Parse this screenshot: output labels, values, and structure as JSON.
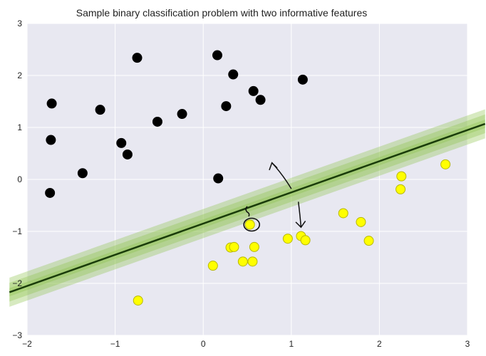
{
  "chart_data": {
    "type": "scatter",
    "title": "Sample binary classification problem with two informative features",
    "xlabel": "",
    "ylabel": "",
    "xlim": [
      -2,
      3
    ],
    "ylim": [
      -3,
      3
    ],
    "x_ticks": [
      -2,
      -1,
      0,
      1,
      2,
      3
    ],
    "y_ticks": [
      -3,
      -2,
      -1,
      0,
      1,
      2,
      3
    ],
    "grid": true,
    "background_color": "#e8e8f1",
    "grid_color": "#ffffff",
    "series": [
      {
        "color": "#000000",
        "points": [
          [
            -1.72,
            1.46
          ],
          [
            -1.73,
            0.76
          ],
          [
            -1.74,
            -0.26
          ],
          [
            -1.37,
            0.12
          ],
          [
            -1.17,
            1.34
          ],
          [
            -0.93,
            0.7
          ],
          [
            -0.86,
            0.48
          ],
          [
            -0.75,
            2.34
          ],
          [
            -0.52,
            1.11
          ],
          [
            -0.24,
            1.26
          ],
          [
            0.16,
            2.39
          ],
          [
            0.17,
            0.02
          ],
          [
            0.26,
            1.41
          ],
          [
            0.34,
            2.02
          ],
          [
            0.57,
            1.7
          ],
          [
            0.65,
            1.53
          ],
          [
            1.13,
            1.92
          ]
        ]
      },
      {
        "color": "#ffff00",
        "points": [
          [
            -0.74,
            -2.33
          ],
          [
            0.11,
            -1.66
          ],
          [
            0.31,
            -1.31
          ],
          [
            0.35,
            -1.3
          ],
          [
            0.45,
            -1.58
          ],
          [
            0.53,
            -0.87
          ],
          [
            0.56,
            -1.58
          ],
          [
            0.58,
            -1.3
          ],
          [
            0.96,
            -1.14
          ],
          [
            1.11,
            -1.09
          ],
          [
            1.16,
            -1.17
          ],
          [
            1.59,
            -0.65
          ],
          [
            1.79,
            -0.82
          ],
          [
            1.88,
            -1.18
          ],
          [
            2.24,
            -0.19
          ],
          [
            2.25,
            0.06
          ],
          [
            2.75,
            0.29
          ]
        ]
      }
    ],
    "decision_line": {
      "color": "#1a3c0a",
      "band_color": "#8bc34a",
      "points": [
        [
          -2.0,
          -2.05
        ],
        [
          3.0,
          0.95
        ]
      ]
    }
  }
}
